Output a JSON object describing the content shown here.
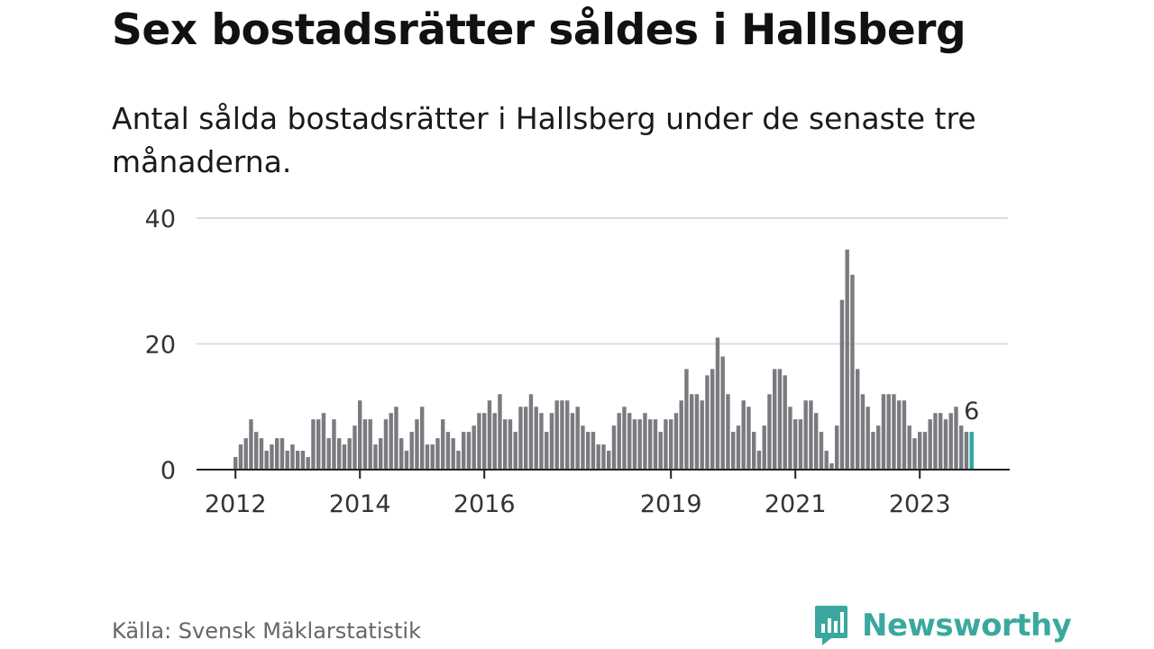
{
  "title": "Sex bostadsrätter såldes i Hallsberg",
  "subtitle": "Antal sålda bostadsrätter i Hallsberg under de senaste tre månaderna.",
  "source": "Källa: Svensk Mäklarstatistik",
  "brand": {
    "name": "Newsworthy",
    "icon": "newsworthy-logo-icon",
    "color": "#3aa89e"
  },
  "colors": {
    "bar": "#7a7a80",
    "highlight": "#2aa8a0",
    "grid": "#dcdcdc",
    "axis": "#222222"
  },
  "chart_data": {
    "type": "bar",
    "x_start": "2012-01",
    "x_end": "2024-01",
    "values": [
      2,
      4,
      5,
      8,
      6,
      5,
      3,
      4,
      5,
      5,
      3,
      4,
      3,
      3,
      2,
      8,
      8,
      9,
      5,
      8,
      5,
      4,
      5,
      7,
      11,
      8,
      8,
      4,
      5,
      8,
      9,
      10,
      5,
      3,
      6,
      8,
      10,
      4,
      4,
      5,
      8,
      6,
      5,
      3,
      6,
      6,
      7,
      9,
      9,
      11,
      9,
      12,
      8,
      8,
      6,
      10,
      10,
      12,
      10,
      9,
      6,
      9,
      11,
      11,
      11,
      9,
      10,
      7,
      6,
      6,
      4,
      4,
      3,
      7,
      9,
      10,
      9,
      8,
      8,
      9,
      8,
      8,
      6,
      8,
      8,
      9,
      11,
      16,
      12,
      12,
      11,
      15,
      16,
      21,
      18,
      12,
      6,
      7,
      11,
      10,
      6,
      3,
      7,
      12,
      16,
      16,
      15,
      10,
      8,
      8,
      11,
      11,
      9,
      6,
      3,
      1,
      7,
      27,
      35,
      31,
      16,
      12,
      10,
      6,
      7,
      12,
      12,
      12,
      11,
      11,
      7,
      5,
      6,
      6,
      8,
      9,
      9,
      8,
      9,
      10,
      7,
      6,
      6
    ],
    "highlight_value": 6,
    "data_label": "6",
    "yticks": [
      0,
      20,
      40
    ],
    "xticks": [
      {
        "label": "2012",
        "index": 0
      },
      {
        "label": "2014",
        "index": 24
      },
      {
        "label": "2016",
        "index": 48
      },
      {
        "label": "2019",
        "index": 84
      },
      {
        "label": "2021",
        "index": 108
      },
      {
        "label": "2023",
        "index": 132
      }
    ],
    "ylim": [
      0,
      40
    ],
    "xlabel": "",
    "ylabel": "",
    "grid": true
  }
}
